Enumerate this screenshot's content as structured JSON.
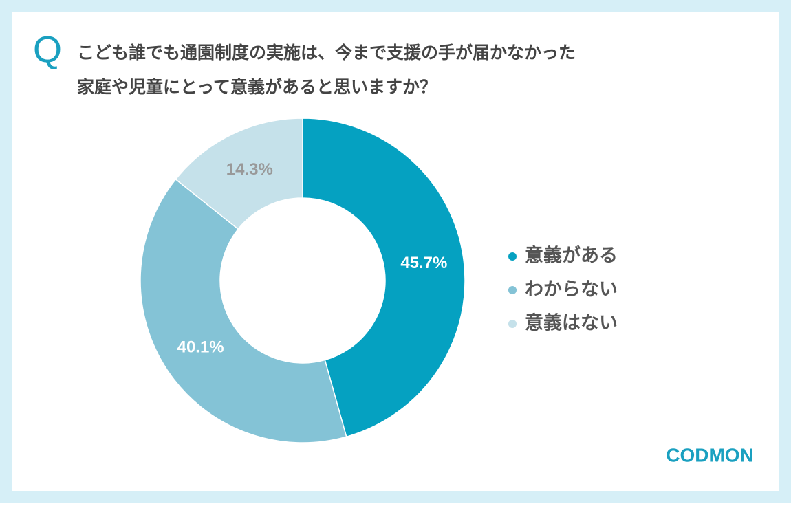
{
  "chart_data": {
    "type": "donut",
    "question_mark": "Q",
    "title": [
      "こども誰でも通園制度の実施は、今まで支援の手が届かなかった",
      "家庭や児童にとって意義があると思いますか？"
    ],
    "categories": [
      "意義がある",
      "わからない",
      "意義はない"
    ],
    "values": [
      45.7,
      40.1,
      14.3
    ],
    "value_labels": [
      "45.7%",
      "40.1%",
      "14.3%"
    ],
    "colors": [
      "#05a1c1",
      "#84c3d6",
      "#c5e1ea"
    ],
    "legend": "right",
    "logo": "CODMON"
  }
}
